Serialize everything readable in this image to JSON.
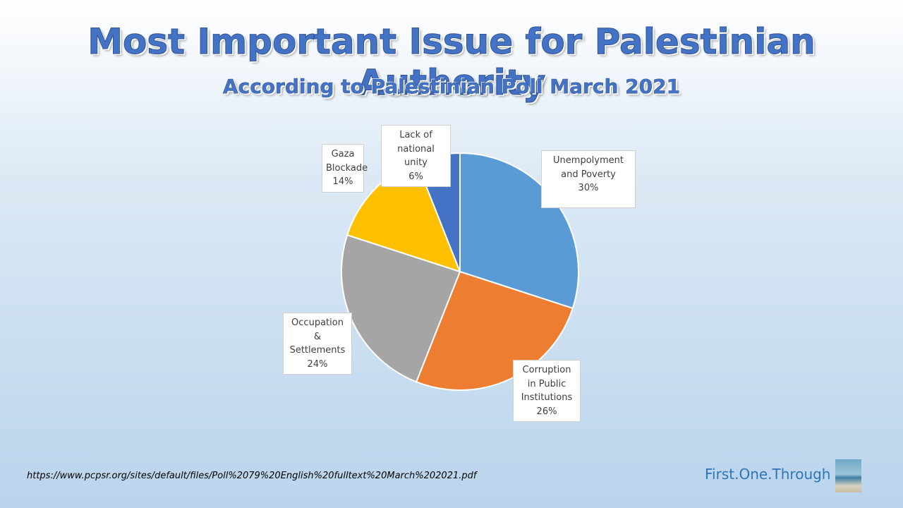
{
  "chart_data": {
    "type": "pie",
    "title": "Most Important Issue for Palestinian Authority",
    "subtitle": "According to Palestinian Poll March 2021",
    "categories": [
      "Unempolyment and Poverty",
      "Corruption in Public Institutions",
      "Occupation & Settlements",
      "Gaza Blockade",
      "Lack of national unity"
    ],
    "values": [
      30,
      26,
      24,
      14,
      6
    ],
    "value_labels": [
      "30%",
      "26%",
      "24%",
      "14%",
      "6%"
    ],
    "colors": [
      "#5b9bd5",
      "#ed7d31",
      "#a5a5a5",
      "#ffc000",
      "#4472c4"
    ]
  },
  "source": "https://www.pcpsr.org/sites/default/files/Poll%2079%20English%20fulltext%20March%202021.pdf",
  "branding": "First.One.Through"
}
